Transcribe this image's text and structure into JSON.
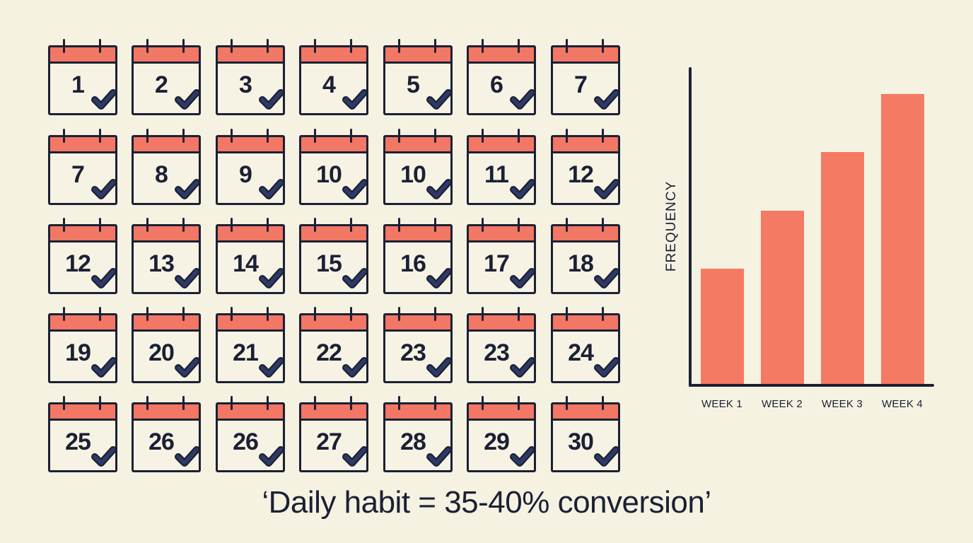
{
  "calendar": {
    "header_color": "#f27764",
    "check_color": "#2e3a66",
    "rows": [
      [
        "1",
        "2",
        "3",
        "4",
        "5",
        "6",
        "7"
      ],
      [
        "7",
        "8",
        "9",
        "10",
        "10",
        "11",
        "12"
      ],
      [
        "12",
        "13",
        "14",
        "15",
        "16",
        "17",
        "18"
      ],
      [
        "19",
        "20",
        "21",
        "22",
        "23",
        "23",
        "24"
      ],
      [
        "25",
        "26",
        "26",
        "27",
        "28",
        "29",
        "30"
      ]
    ],
    "icon": "calendar-check-icon"
  },
  "chart": {
    "ylabel": "FREQUENCY",
    "categories": [
      "WEEK 1",
      "WEEK 2",
      "WEEK 3",
      "WEEK 4"
    ],
    "bar_color": "#f47a63"
  },
  "chart_data": {
    "type": "bar",
    "title": "",
    "xlabel": "",
    "ylabel": "FREQUENCY",
    "categories": [
      "WEEK 1",
      "WEEK 2",
      "WEEK 3",
      "WEEK 4"
    ],
    "values": [
      40,
      60,
      80,
      100
    ],
    "ylim": [
      0,
      110
    ],
    "grid": false,
    "legend": "none",
    "note": "No numeric ticks; values are relative bar heights (Week 4 = 100)"
  },
  "caption": "‘Daily habit = 35-40% conversion’"
}
